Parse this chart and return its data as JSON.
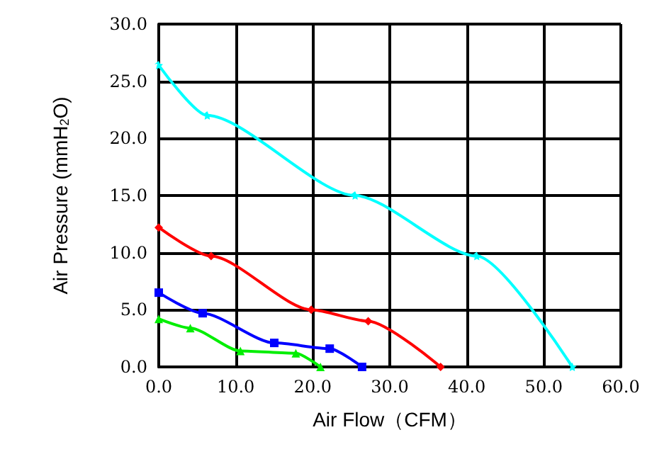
{
  "chart_data": {
    "type": "line",
    "xlabel": "Air Flow（CFM）",
    "ylabel": "Air Pressure (mmH$_{2}$O)",
    "xlim": [
      0,
      60
    ],
    "ylim": [
      0,
      30
    ],
    "xticks": [
      {
        "value": 0,
        "label": "0.0"
      },
      {
        "value": 10,
        "label": "10.0"
      },
      {
        "value": 20,
        "label": "20.0"
      },
      {
        "value": 30,
        "label": "30.0"
      },
      {
        "value": 40,
        "label": "40.0"
      },
      {
        "value": 50,
        "label": "50.0"
      },
      {
        "value": 60,
        "label": "60.0"
      }
    ],
    "yticks": [
      {
        "value": 0,
        "label": "0.0"
      },
      {
        "value": 5,
        "label": "5.0"
      },
      {
        "value": 10,
        "label": "10.0"
      },
      {
        "value": 15,
        "label": "15.0"
      },
      {
        "value": 20,
        "label": "20.0"
      },
      {
        "value": 25,
        "label": "25.0"
      },
      {
        "value": 30,
        "label": "30.0"
      }
    ],
    "grid": true,
    "line_style": "solid",
    "series": [
      {
        "color": "#00ffff",
        "marker": "star",
        "x": [
          0,
          6.3,
          25.5,
          41.3,
          53.7
        ],
        "values": [
          26.4,
          22.0,
          15.0,
          9.7,
          0
        ]
      },
      {
        "color": "#ff0000",
        "marker": "diamond",
        "x": [
          0,
          6.8,
          19.8,
          27.2,
          36.6
        ],
        "values": [
          12.2,
          9.7,
          5.0,
          4.0,
          0
        ]
      },
      {
        "color": "#0000ff",
        "marker": "square",
        "x": [
          0,
          5.7,
          15.0,
          22.2,
          26.4
        ],
        "values": [
          6.5,
          4.7,
          2.1,
          1.6,
          0
        ]
      },
      {
        "color": "#00ee00",
        "marker": "triangle",
        "x": [
          0,
          4.1,
          10.6,
          17.8,
          21.0
        ],
        "values": [
          4.2,
          3.4,
          1.4,
          1.2,
          0
        ]
      }
    ]
  }
}
